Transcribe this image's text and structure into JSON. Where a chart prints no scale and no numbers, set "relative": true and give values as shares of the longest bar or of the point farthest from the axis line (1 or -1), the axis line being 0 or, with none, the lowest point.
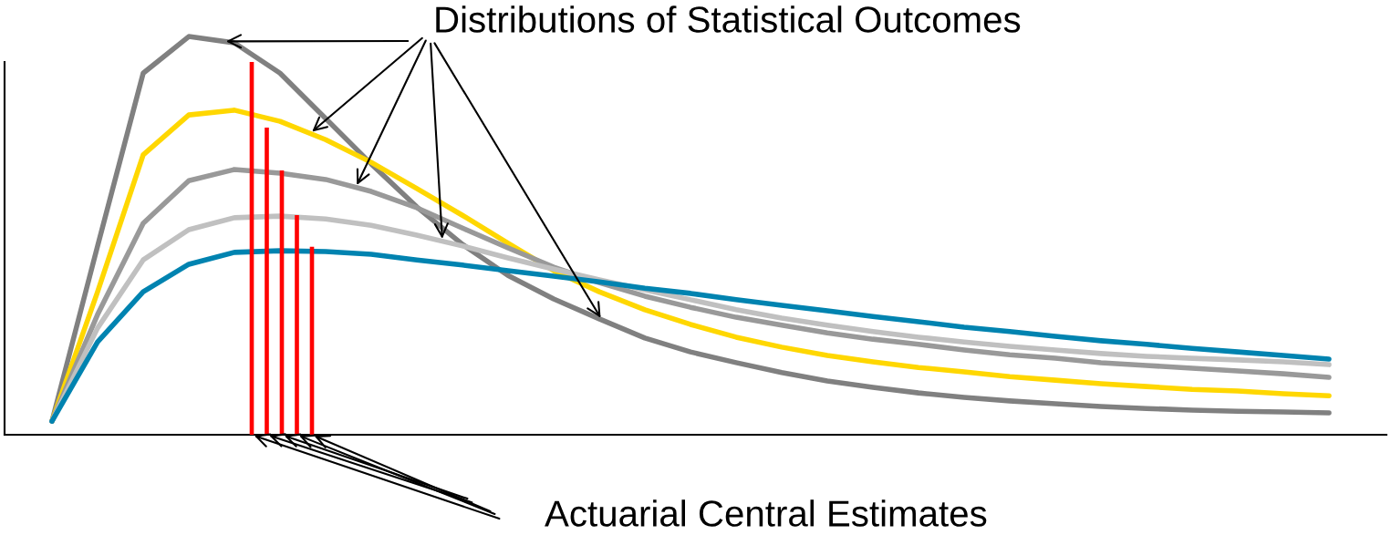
{
  "chart_data": [
    {
      "type": "line",
      "relative": true,
      "annotations": [
        "Distributions of Statistical Outcomes"
      ],
      "categories": [
        null,
        null,
        null,
        null,
        null,
        null,
        null,
        null,
        null,
        null,
        null,
        null,
        null,
        null,
        null,
        null,
        null,
        null,
        null,
        null,
        null,
        null,
        null,
        null,
        null,
        null,
        null,
        null,
        null
      ],
      "series": [
        {
          "color": "#808080",
          "values": [
            0.034,
            0.474,
            0.908,
            1.0,
            0.984,
            0.908,
            0.794,
            0.68,
            0.572,
            0.478,
            0.4,
            0.341,
            0.291,
            0.243,
            0.208,
            0.181,
            0.156,
            0.135,
            0.119,
            0.105,
            0.094,
            0.085,
            0.078,
            0.071,
            0.066,
            0.062,
            0.059,
            0.057,
            0.055
          ]
        },
        {
          "color": "#ffd700",
          "values": [
            0.034,
            0.359,
            0.703,
            0.803,
            0.815,
            0.787,
            0.741,
            0.684,
            0.618,
            0.551,
            0.481,
            0.412,
            0.359,
            0.314,
            0.277,
            0.245,
            0.22,
            0.199,
            0.183,
            0.169,
            0.158,
            0.146,
            0.137,
            0.128,
            0.121,
            0.114,
            0.11,
            0.103,
            0.098
          ]
        },
        {
          "color": "#999999",
          "values": [
            0.034,
            0.302,
            0.531,
            0.638,
            0.666,
            0.657,
            0.641,
            0.611,
            0.57,
            0.519,
            0.469,
            0.421,
            0.382,
            0.348,
            0.32,
            0.295,
            0.275,
            0.256,
            0.24,
            0.227,
            0.213,
            0.201,
            0.192,
            0.181,
            0.174,
            0.167,
            0.16,
            0.153,
            0.144
          ]
        },
        {
          "color": "#c0c0c0",
          "values": [
            0.034,
            0.268,
            0.439,
            0.515,
            0.545,
            0.549,
            0.542,
            0.526,
            0.501,
            0.474,
            0.444,
            0.416,
            0.389,
            0.364,
            0.339,
            0.314,
            0.293,
            0.275,
            0.259,
            0.245,
            0.233,
            0.222,
            0.213,
            0.204,
            0.197,
            0.192,
            0.188,
            0.183,
            0.176
          ]
        },
        {
          "color": "#0083b0",
          "values": [
            0.034,
            0.233,
            0.359,
            0.428,
            0.458,
            0.462,
            0.46,
            0.453,
            0.439,
            0.426,
            0.412,
            0.398,
            0.384,
            0.368,
            0.355,
            0.339,
            0.325,
            0.311,
            0.297,
            0.284,
            0.27,
            0.259,
            0.247,
            0.236,
            0.227,
            0.217,
            0.208,
            0.199,
            0.19
          ]
        }
      ]
    },
    {
      "type": "bar",
      "relative": true,
      "annotations": [
        "Actuarial Central Estimates"
      ],
      "categories": [
        null,
        null,
        null,
        null,
        null
      ],
      "color": "#ff0000",
      "values": [
        1.0,
        0.824,
        0.709,
        0.589,
        0.504
      ]
    }
  ]
}
